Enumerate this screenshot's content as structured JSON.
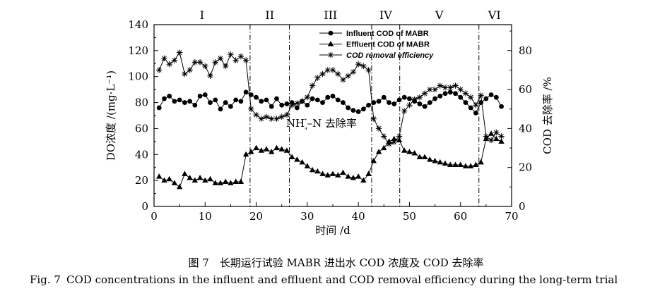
{
  "chart_data": {
    "type": "line",
    "xlabel": "时间 /d",
    "ylabel_left": "DO浓度 /(mg·L⁻¹)",
    "ylabel_right": "COD 去除率 /%",
    "xlim": [
      0,
      70
    ],
    "xticks": [
      "0",
      "10",
      "20",
      "30",
      "40",
      "50",
      "60",
      "70"
    ],
    "ylim_left": [
      0,
      140
    ],
    "yticks_left": [
      "0",
      "20",
      "40",
      "60",
      "80",
      "100",
      "120",
      "140"
    ],
    "ylim_right": [
      0,
      93.3
    ],
    "yticks_right": [
      "0",
      "20",
      "40",
      "60",
      "80"
    ],
    "legend_position": "top-center",
    "phases": {
      "labels": [
        "I",
        "II",
        "III",
        "IV",
        "V",
        "VI"
      ],
      "boundaries": [
        18.8,
        26.5,
        42.6,
        48.1,
        63.6
      ]
    },
    "annotation": "NH₄⁺–N 去除率",
    "series": [
      {
        "name": "Influent COD of MABR",
        "axis": "left",
        "marker": "circle",
        "x": [
          1,
          2,
          3,
          4,
          5,
          6,
          7,
          8,
          9,
          10,
          11,
          12,
          13,
          14,
          15,
          16,
          17,
          18,
          19,
          20,
          21,
          22,
          23,
          24,
          25,
          26,
          27,
          28,
          29,
          30,
          31,
          32,
          33,
          34,
          35,
          36,
          37,
          38,
          39,
          40,
          41,
          42,
          43,
          44,
          45,
          46,
          47,
          48,
          49,
          50,
          51,
          52,
          53,
          54,
          55,
          56,
          57,
          58,
          59,
          60,
          61,
          62,
          63,
          64,
          65,
          66,
          67,
          68
        ],
        "values": [
          76,
          83,
          85,
          81,
          82,
          80,
          81,
          78,
          85,
          86,
          80,
          82,
          75,
          80,
          77,
          82,
          81,
          88,
          86,
          84,
          81,
          82,
          77,
          83,
          78,
          79,
          80,
          76,
          81,
          78,
          83,
          82,
          80,
          84,
          85,
          82,
          80,
          76,
          74,
          73,
          75,
          78,
          80,
          81,
          84,
          80,
          79,
          82,
          84,
          83,
          81,
          79,
          77,
          80,
          83,
          85,
          87,
          88,
          87,
          84,
          80,
          76,
          72,
          80,
          83,
          86,
          84,
          77
        ]
      },
      {
        "name": "Effluent COD of MABR",
        "axis": "left",
        "marker": "triangle",
        "x": [
          1,
          2,
          3,
          4,
          5,
          6,
          7,
          8,
          9,
          10,
          11,
          12,
          13,
          14,
          15,
          16,
          17,
          18,
          19,
          20,
          21,
          22,
          23,
          24,
          25,
          26,
          27,
          28,
          29,
          30,
          31,
          32,
          33,
          34,
          35,
          36,
          37,
          38,
          39,
          40,
          41,
          42,
          43,
          44,
          45,
          46,
          47,
          48,
          49,
          50,
          51,
          52,
          53,
          54,
          55,
          56,
          57,
          58,
          59,
          60,
          61,
          62,
          63,
          64,
          65,
          66,
          67,
          68
        ],
        "values": [
          23,
          20,
          21,
          18,
          15,
          25,
          22,
          20,
          22,
          20,
          21,
          18,
          18,
          19,
          18,
          19,
          19,
          40,
          42,
          45,
          43,
          44,
          42,
          45,
          44,
          43,
          38,
          36,
          34,
          31,
          28,
          27,
          25,
          24,
          25,
          24,
          26,
          23,
          22,
          23,
          20,
          25,
          35,
          42,
          45,
          50,
          52,
          51,
          43,
          42,
          41,
          38,
          38,
          36,
          35,
          34,
          33,
          32,
          32,
          32,
          31,
          31,
          32,
          34,
          52,
          56,
          52,
          50
        ]
      },
      {
        "name": "COD removal efficiency",
        "axis": "right",
        "marker": "asterisk",
        "x": [
          1,
          2,
          3,
          4,
          5,
          6,
          7,
          8,
          9,
          10,
          11,
          12,
          13,
          14,
          15,
          16,
          17,
          18,
          19,
          20,
          21,
          22,
          23,
          24,
          25,
          26,
          27,
          28,
          29,
          30,
          31,
          32,
          33,
          34,
          35,
          36,
          37,
          38,
          39,
          40,
          41,
          42,
          43,
          44,
          45,
          46,
          47,
          48,
          49,
          50,
          51,
          52,
          53,
          54,
          55,
          56,
          57,
          58,
          59,
          60,
          61,
          62,
          63,
          64,
          65,
          66,
          67,
          68
        ],
        "values": [
          70,
          76,
          73,
          75,
          79,
          68,
          70,
          74,
          74,
          72,
          67,
          74,
          76,
          72,
          78,
          75,
          77,
          75,
          50,
          47,
          45,
          46,
          45,
          45,
          46,
          47,
          52,
          53,
          54,
          56,
          62,
          66,
          68,
          70,
          70,
          68,
          65,
          67,
          69,
          73,
          72,
          70,
          45,
          40,
          36,
          32,
          33,
          36,
          49,
          52,
          55,
          56,
          58,
          60,
          60,
          62,
          61,
          61,
          62,
          60,
          58,
          56,
          52,
          57,
          36,
          34,
          38,
          36
        ]
      }
    ]
  },
  "caption": {
    "cn": "图 7　长期运行试验 MABR 进出水 COD 浓度及 COD 去除率",
    "en_fig": "Fig. 7",
    "en_text": "COD concentrations in the influent and effluent and COD removal efficiency during the long-term trial"
  }
}
